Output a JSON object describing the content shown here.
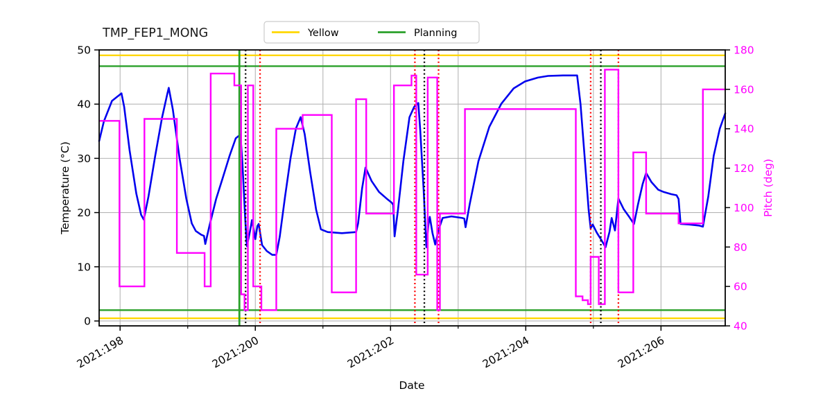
{
  "title": "TMP_FEP1_MONG",
  "legend": {
    "items": [
      {
        "label": "Yellow",
        "color": "#FFD700"
      },
      {
        "label": "Planning",
        "color": "#2AA02A"
      }
    ]
  },
  "chart_data": {
    "type": "line",
    "title": "TMP_FEP1_MONG",
    "xlabel": "Date",
    "ylabel_left": "Temperature (°C)",
    "ylabel_right": "Pitch (deg)",
    "grid": true,
    "legend_position": "top-center",
    "xlim": [
      197.69,
      206.95
    ],
    "ylim_left": [
      -0.9,
      50
    ],
    "ylim_right": [
      40,
      180
    ],
    "x_ticks": [
      {
        "day": 198,
        "label": "2021:198"
      },
      {
        "day": 200,
        "label": "2021:200"
      },
      {
        "day": 202,
        "label": "2021:202"
      },
      {
        "day": 204,
        "label": "2021:204"
      },
      {
        "day": 206,
        "label": "2021:206"
      }
    ],
    "x_minor_days": [
      199,
      201,
      203,
      205
    ],
    "grid_days": [
      198,
      199,
      200,
      201,
      202,
      203,
      204,
      205,
      206
    ],
    "yticks_left": [
      0,
      10,
      20,
      30,
      40,
      50
    ],
    "yticks_right": [
      40,
      60,
      80,
      100,
      120,
      140,
      160,
      180
    ],
    "colors": {
      "temperature": "#0000EE",
      "pitch": "#FF00FF",
      "yellow_limit": "#FFD700",
      "planning_limit": "#2AA02A",
      "event_red": "#FF0000",
      "event_black": "#000000",
      "grid": "#B5B5B5",
      "right_axis_text": "#FF00FF"
    },
    "hlines": [
      {
        "name": "yellow-limit-high",
        "axis": "left",
        "y": 49,
        "color": "#FFD700",
        "style": "solid"
      },
      {
        "name": "yellow-limit-low",
        "axis": "left",
        "y": 0.5,
        "color": "#FFD700",
        "style": "solid"
      },
      {
        "name": "planning-limit-high",
        "axis": "left",
        "y": 47,
        "color": "#2AA02A",
        "style": "solid"
      },
      {
        "name": "planning-limit-low",
        "axis": "left",
        "y": 2,
        "color": "#2AA02A",
        "style": "solid"
      }
    ],
    "vlines": [
      {
        "name": "planning-event",
        "x": 199.764,
        "color": "#2AA02A",
        "style": "solid"
      },
      {
        "name": "event-black-1",
        "x": 199.856,
        "color": "#000000",
        "style": "dotted"
      },
      {
        "name": "event-red-1",
        "x": 200.07,
        "color": "#FF0000",
        "style": "dotted"
      },
      {
        "name": "event-red-2",
        "x": 202.36,
        "color": "#FF0000",
        "style": "dotted"
      },
      {
        "name": "event-black-2",
        "x": 202.5,
        "color": "#000000",
        "style": "dotted"
      },
      {
        "name": "event-red-3",
        "x": 202.71,
        "color": "#FF0000",
        "style": "dotted"
      },
      {
        "name": "event-red-4",
        "x": 204.96,
        "color": "#FF0000",
        "style": "dotted"
      },
      {
        "name": "event-black-3",
        "x": 205.11,
        "color": "#000000",
        "style": "dotted"
      },
      {
        "name": "event-red-5",
        "x": 205.37,
        "color": "#FF0000",
        "style": "dotted"
      }
    ],
    "series": [
      {
        "name": "Temperature",
        "axis": "left",
        "color": "#0000EE",
        "mode": "line",
        "points": [
          [
            197.69,
            33.2
          ],
          [
            197.76,
            36.8
          ],
          [
            197.88,
            40.6
          ],
          [
            198.02,
            42.0
          ],
          [
            198.06,
            39.5
          ],
          [
            198.14,
            31.5
          ],
          [
            198.24,
            23.5
          ],
          [
            198.31,
            19.6
          ],
          [
            198.35,
            18.7
          ],
          [
            198.42,
            23.0
          ],
          [
            198.52,
            30.5
          ],
          [
            198.62,
            37.5
          ],
          [
            198.7,
            42.0
          ],
          [
            198.72,
            43.0
          ],
          [
            198.78,
            39.0
          ],
          [
            198.88,
            30.0
          ],
          [
            198.98,
            22.5
          ],
          [
            199.06,
            18.0
          ],
          [
            199.12,
            16.6
          ],
          [
            199.2,
            15.9
          ],
          [
            199.24,
            15.7
          ],
          [
            199.26,
            14.2
          ],
          [
            199.32,
            17.5
          ],
          [
            199.42,
            22.5
          ],
          [
            199.52,
            26.5
          ],
          [
            199.62,
            30.5
          ],
          [
            199.71,
            33.7
          ],
          [
            199.78,
            34.4
          ],
          [
            199.81,
            29.0
          ],
          [
            199.85,
            19.0
          ],
          [
            199.875,
            13.8
          ],
          [
            199.92,
            16.5
          ],
          [
            199.95,
            18.6
          ],
          [
            200.0,
            15.1
          ],
          [
            200.03,
            17.5
          ],
          [
            200.05,
            17.9
          ],
          [
            200.1,
            14.0
          ],
          [
            200.17,
            12.9
          ],
          [
            200.25,
            12.2
          ],
          [
            200.31,
            12.2
          ],
          [
            200.36,
            15.5
          ],
          [
            200.44,
            23.0
          ],
          [
            200.52,
            30.0
          ],
          [
            200.6,
            35.5
          ],
          [
            200.67,
            37.6
          ],
          [
            200.73,
            34.5
          ],
          [
            200.81,
            27.5
          ],
          [
            200.9,
            20.5
          ],
          [
            200.97,
            16.9
          ],
          [
            201.07,
            16.4
          ],
          [
            201.28,
            16.2
          ],
          [
            201.49,
            16.4
          ],
          [
            201.52,
            18.0
          ],
          [
            201.58,
            24.5
          ],
          [
            201.63,
            28.3
          ],
          [
            201.72,
            25.8
          ],
          [
            201.83,
            23.8
          ],
          [
            201.94,
            22.6
          ],
          [
            202.02,
            21.8
          ],
          [
            202.04,
            21.4
          ],
          [
            202.06,
            15.6
          ],
          [
            202.11,
            20.5
          ],
          [
            202.19,
            29.5
          ],
          [
            202.28,
            37.6
          ],
          [
            202.35,
            39.5
          ],
          [
            202.41,
            40.2
          ],
          [
            202.44,
            35.0
          ],
          [
            202.49,
            24.0
          ],
          [
            202.53,
            13.6
          ],
          [
            202.56,
            17.8
          ],
          [
            202.58,
            19.2
          ],
          [
            202.62,
            16.2
          ],
          [
            202.66,
            14.1
          ],
          [
            202.71,
            16.8
          ],
          [
            202.77,
            19.0
          ],
          [
            202.9,
            19.3
          ],
          [
            203.06,
            19.0
          ],
          [
            203.09,
            18.9
          ],
          [
            203.11,
            17.3
          ],
          [
            203.17,
            21.5
          ],
          [
            203.3,
            29.5
          ],
          [
            203.46,
            35.8
          ],
          [
            203.64,
            40.1
          ],
          [
            203.82,
            42.9
          ],
          [
            203.99,
            44.2
          ],
          [
            204.18,
            44.9
          ],
          [
            204.33,
            45.2
          ],
          [
            204.55,
            45.3
          ],
          [
            204.76,
            45.3
          ],
          [
            204.81,
            40.0
          ],
          [
            204.87,
            30.3
          ],
          [
            204.93,
            20.5
          ],
          [
            204.96,
            17.1
          ],
          [
            204.99,
            17.8
          ],
          [
            205.05,
            16.3
          ],
          [
            205.11,
            15.1
          ],
          [
            205.18,
            13.6
          ],
          [
            205.24,
            16.5
          ],
          [
            205.27,
            19.0
          ],
          [
            205.32,
            16.7
          ],
          [
            205.37,
            22.6
          ],
          [
            205.45,
            20.6
          ],
          [
            205.53,
            19.2
          ],
          [
            205.6,
            17.9
          ],
          [
            205.66,
            21.5
          ],
          [
            205.73,
            25.3
          ],
          [
            205.78,
            27.3
          ],
          [
            205.86,
            25.6
          ],
          [
            205.96,
            24.2
          ],
          [
            206.04,
            23.8
          ],
          [
            206.15,
            23.4
          ],
          [
            206.23,
            23.2
          ],
          [
            206.26,
            22.5
          ],
          [
            206.29,
            17.9
          ],
          [
            206.42,
            17.8
          ],
          [
            206.56,
            17.6
          ],
          [
            206.62,
            17.4
          ],
          [
            206.7,
            23.0
          ],
          [
            206.78,
            30.5
          ],
          [
            206.87,
            35.5
          ],
          [
            206.95,
            38.3
          ]
        ]
      },
      {
        "name": "Pitch",
        "axis": "right",
        "color": "#FF00FF",
        "mode": "step",
        "points": [
          [
            197.69,
            144
          ],
          [
            197.99,
            60
          ],
          [
            198.36,
            145
          ],
          [
            198.84,
            77
          ],
          [
            199.25,
            60
          ],
          [
            199.34,
            168
          ],
          [
            199.69,
            162
          ],
          [
            199.79,
            56
          ],
          [
            199.84,
            48
          ],
          [
            199.89,
            162
          ],
          [
            199.97,
            60
          ],
          [
            200.09,
            48
          ],
          [
            200.31,
            140
          ],
          [
            200.7,
            147
          ],
          [
            201.13,
            57
          ],
          [
            201.49,
            155
          ],
          [
            201.64,
            97
          ],
          [
            202.05,
            162
          ],
          [
            202.31,
            167
          ],
          [
            202.38,
            66
          ],
          [
            202.55,
            166
          ],
          [
            202.69,
            48
          ],
          [
            202.73,
            97
          ],
          [
            203.1,
            150
          ],
          [
            204.74,
            55
          ],
          [
            204.84,
            53
          ],
          [
            204.92,
            51
          ],
          [
            204.96,
            75
          ],
          [
            205.08,
            51
          ],
          [
            205.17,
            170
          ],
          [
            205.37,
            57
          ],
          [
            205.59,
            128
          ],
          [
            205.78,
            97
          ],
          [
            206.26,
            92
          ],
          [
            206.62,
            160
          ],
          [
            206.95,
            160
          ]
        ]
      }
    ]
  }
}
